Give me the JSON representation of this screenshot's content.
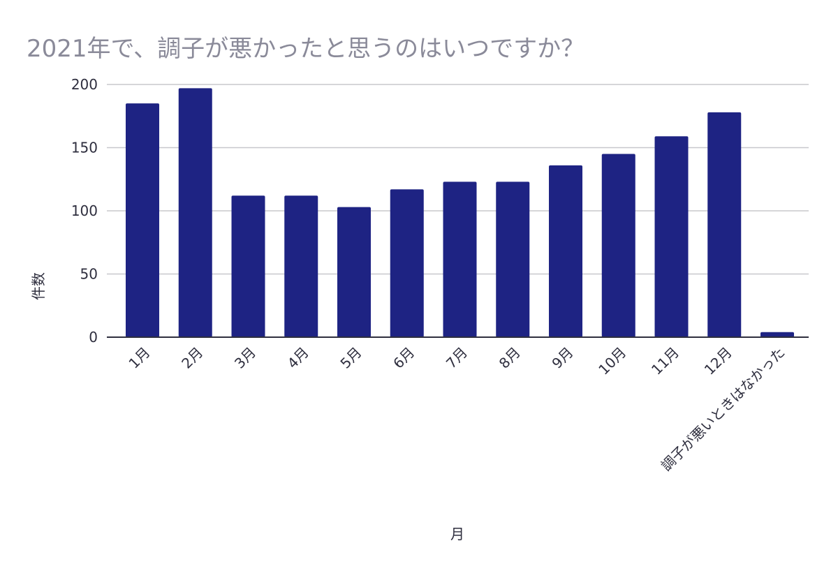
{
  "chart_data": {
    "type": "bar",
    "title": "2021年で、調子が悪かったと思うのはいつですか？",
    "xlabel": "月",
    "ylabel": "件数",
    "categories": [
      "1月",
      "2月",
      "3月",
      "4月",
      "5月",
      "6月",
      "7月",
      "8月",
      "9月",
      "10月",
      "11月",
      "12月",
      "調子が悪いときはなかった"
    ],
    "values": [
      185,
      197,
      112,
      112,
      103,
      117,
      123,
      123,
      136,
      145,
      159,
      178,
      4
    ],
    "ylim": [
      0,
      200
    ],
    "yticks": [
      0,
      50,
      100,
      150,
      200
    ],
    "grid": true,
    "bar_color": "#1e2383",
    "grid_color": "#c8c8cc",
    "axis_color": "#2e2e3e"
  }
}
